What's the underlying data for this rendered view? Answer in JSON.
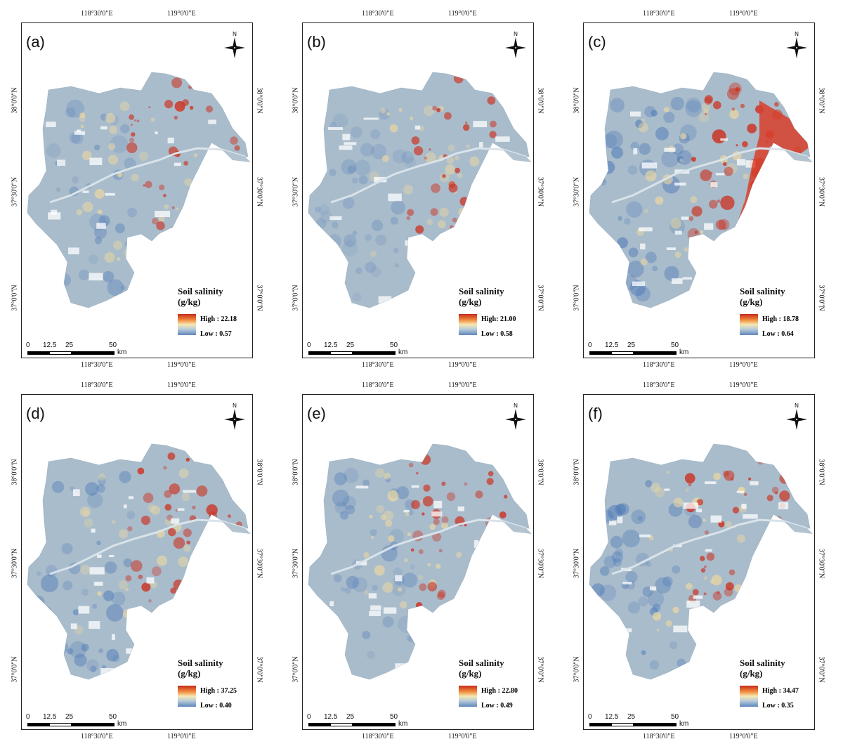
{
  "coords": {
    "top_left": "118°30'0\"E",
    "top_right": "119°0'0\"E",
    "lat_38": "38°0'0\"N",
    "lat_3730": "37°30'0\"N",
    "lat_37": "37°0'0\"N"
  },
  "legend_title": "Soil salinity",
  "legend_unit": "(g/kg)",
  "scale": {
    "t0": "0",
    "t1": "12.5",
    "t2": "25",
    "t3": "50",
    "unit": "km"
  },
  "compass_letter": "N",
  "panels": [
    {
      "label": "(a)",
      "high": "High : 22.18",
      "low": "Low : 0.57"
    },
    {
      "label": "(b)",
      "high": "High: 21.00",
      "low": "Low : 0.58"
    },
    {
      "label": "(c)",
      "high": "High : 18.78",
      "low": "Low : 0.64"
    },
    {
      "label": "(d)",
      "high": "High : 37.25",
      "low": "Low : 0.40"
    },
    {
      "label": "(e)",
      "high": "High : 22.80",
      "low": "Low : 0.49"
    },
    {
      "label": "(f)",
      "high": "High : 34.47",
      "low": "Low : 0.35"
    }
  ],
  "colors": {
    "high": "#c62c1c",
    "mid": "#f6e8b2",
    "low": "#5f87bd",
    "neutral": "#a9bccb"
  }
}
